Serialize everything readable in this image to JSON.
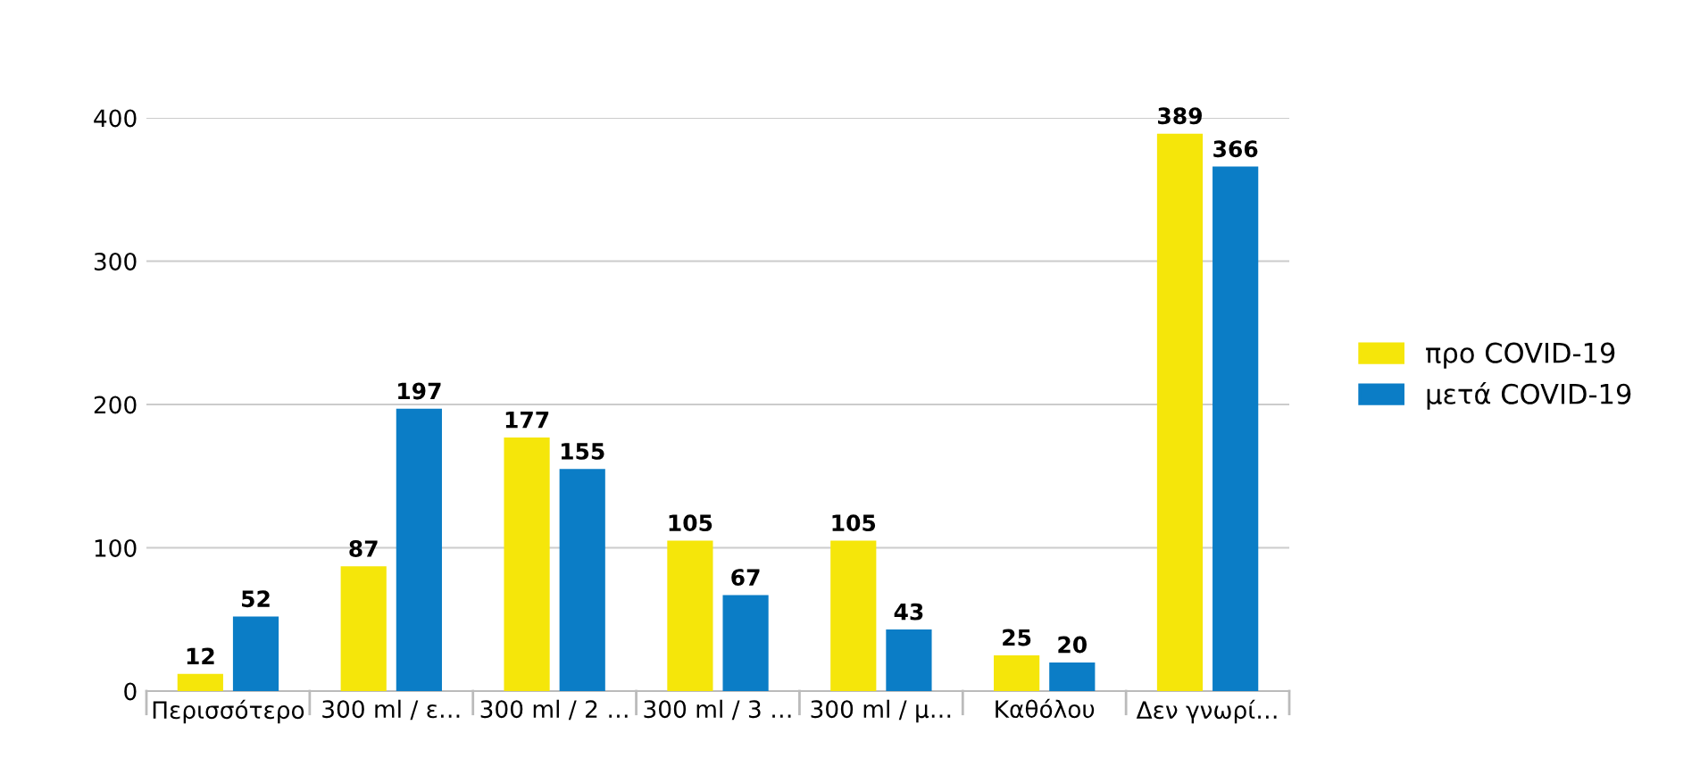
{
  "chart_data": {
    "type": "bar",
    "categories": [
      "Περισσότερο",
      "300 ml / ε…",
      "300 ml / 2 …",
      "300 ml / 3 …",
      "300 ml / μ…",
      "Καθόλου",
      "Δεν γνωρί…"
    ],
    "series": [
      {
        "name": "προ COVID-19",
        "color": "#f5e60a",
        "values": [
          12,
          87,
          177,
          105,
          105,
          25,
          389
        ]
      },
      {
        "name": "μετά COVID-19",
        "color": "#0b7dc6",
        "values": [
          52,
          197,
          155,
          67,
          43,
          20,
          366
        ]
      }
    ],
    "ylim": [
      0,
      400
    ],
    "yticks": [
      0,
      100,
      200,
      300,
      400
    ],
    "grid": "y",
    "legend": "right",
    "data_labels": true
  }
}
